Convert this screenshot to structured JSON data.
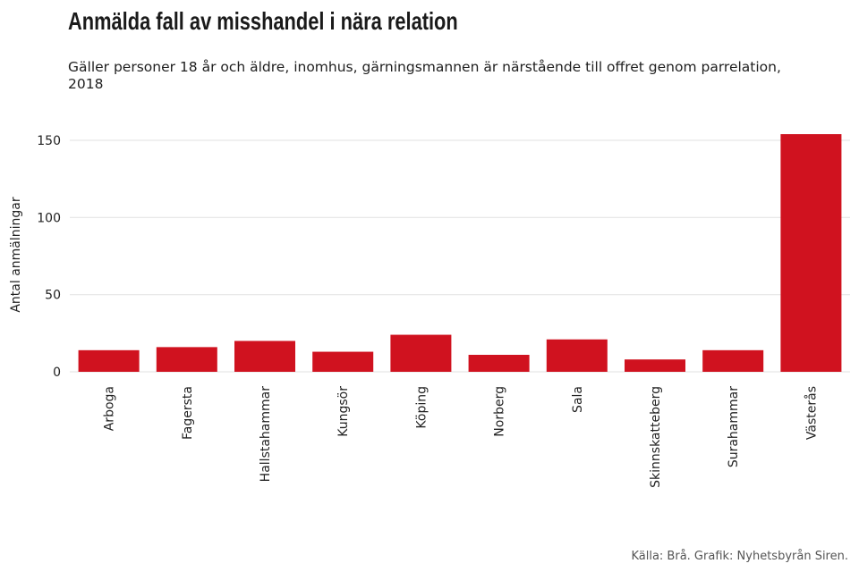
{
  "title": "Anmälda fall av misshandel i nära relation",
  "subtitle": "Gäller personer 18 år och äldre, inomhus, gärningsmannen är närstående till offret genom parrelation, 2018",
  "source": "Källa: Brå. Grafik: Nyhetsbyrån Siren.",
  "chart_data": {
    "type": "bar",
    "categories": [
      "Arboga",
      "Fagersta",
      "Hallstahammar",
      "Kungsör",
      "Köping",
      "Norberg",
      "Sala",
      "Skinnskatteberg",
      "Surahammar",
      "Västerås"
    ],
    "values": [
      14,
      16,
      20,
      13,
      24,
      11,
      21,
      8,
      14,
      154
    ],
    "xlabel": "",
    "ylabel": "Antal anmälningar",
    "ylim": [
      0,
      160
    ],
    "yticks": [
      0,
      50,
      100,
      150
    ],
    "grid": true,
    "bar_color": "#d0121f",
    "grid_color": "#e6e6e6"
  }
}
